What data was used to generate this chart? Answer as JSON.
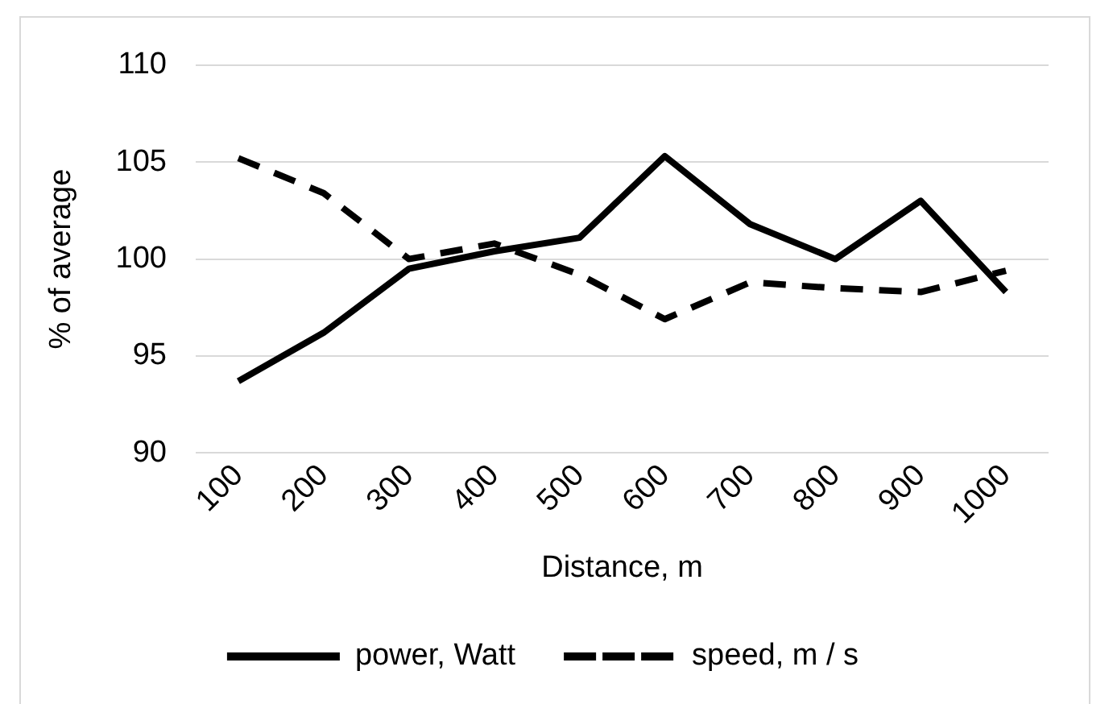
{
  "chart_data": {
    "type": "line",
    "xlabel": "Distance, m",
    "ylabel": "% of average",
    "categories": [
      "100",
      "200",
      "300",
      "400",
      "500",
      "600",
      "700",
      "800",
      "900",
      "1000"
    ],
    "series": [
      {
        "name": "power, Watt",
        "color": "#000000",
        "line_style": "solid",
        "values": [
          93.7,
          96.2,
          99.5,
          100.4,
          101.1,
          105.3,
          101.8,
          100.0,
          103.0,
          98.3
        ]
      },
      {
        "name": "speed, m / s",
        "color": "#000000",
        "line_style": "dashed",
        "values": [
          105.2,
          103.4,
          100.0,
          100.8,
          99.2,
          96.9,
          98.8,
          98.5,
          98.3,
          99.4
        ]
      }
    ],
    "ylim": [
      90,
      110
    ],
    "yticks": [
      90,
      95,
      100,
      105,
      110
    ],
    "grid": "y",
    "legend": "bottom",
    "marker": "none"
  }
}
